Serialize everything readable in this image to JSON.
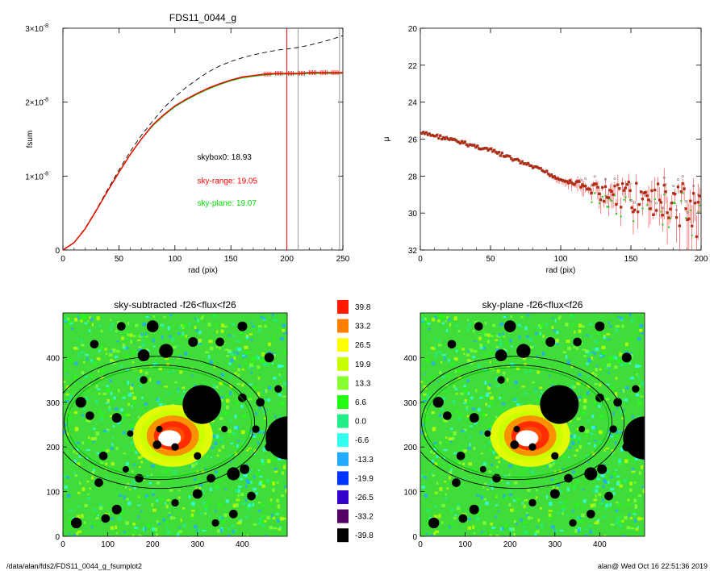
{
  "footer": {
    "path": "/data/alan/fds2/FDS11_0044_g_fsumplot2",
    "user_time": "alan@  Wed Oct 16 22:51:36 2019"
  },
  "colors": {
    "black": "#000000",
    "red": "#ff0000",
    "green": "#00e000",
    "gray": "#999999",
    "sky_field": "#3fdc3a"
  },
  "chart_data": [
    {
      "id": "growth",
      "type": "line",
      "title": "FDS11_0044_g",
      "xlabel": "rad (pix)",
      "ylabel": "fsum",
      "xlim": [
        0,
        250
      ],
      "ylim": [
        0,
        3e-08
      ],
      "xticks": [
        "0",
        "50",
        "100",
        "150",
        "200",
        "250"
      ],
      "yticks": [
        {
          "value": 0,
          "mant": "0",
          "exp": ""
        },
        {
          "value": 1e-08,
          "mant": "1×10",
          "exp": "-8"
        },
        {
          "value": 2e-08,
          "mant": "2×10",
          "exp": "-8"
        },
        {
          "value": 3e-08,
          "mant": "3×10",
          "exp": "-8"
        }
      ],
      "vlines": [
        {
          "x": 200,
          "color": "#ff0000"
        },
        {
          "x": 210,
          "color": "#999999"
        },
        {
          "x": 247,
          "color": "#999999"
        }
      ],
      "x": [
        0,
        10,
        20,
        30,
        40,
        50,
        60,
        70,
        80,
        90,
        100,
        110,
        120,
        130,
        140,
        150,
        160,
        170,
        180,
        190,
        200,
        210,
        220,
        230,
        240,
        250
      ],
      "series": [
        {
          "color": "#000000",
          "dash": true,
          "values": [
            0,
            1e-09,
            3e-09,
            5.5e-09,
            8.2e-09,
            1.08e-08,
            1.33e-08,
            1.55e-08,
            1.74e-08,
            1.92e-08,
            2.07e-08,
            2.2e-08,
            2.31e-08,
            2.41e-08,
            2.49e-08,
            2.55e-08,
            2.6e-08,
            2.64e-08,
            2.67e-08,
            2.7e-08,
            2.72e-08,
            2.74e-08,
            2.77e-08,
            2.81e-08,
            2.85e-08,
            2.9e-08
          ]
        },
        {
          "color": "#00c000",
          "dash": false,
          "values": [
            0,
            1e-09,
            2.9e-09,
            5.4e-09,
            8e-09,
            1.05e-08,
            1.29e-08,
            1.5e-08,
            1.68e-08,
            1.82e-08,
            1.94e-08,
            2.03e-08,
            2.11e-08,
            2.18e-08,
            2.24e-08,
            2.29e-08,
            2.33e-08,
            2.35e-08,
            2.37e-08,
            2.38e-08,
            2.38e-08,
            2.38e-08,
            2.39e-08,
            2.39e-08,
            2.39e-08,
            2.39e-08
          ]
        },
        {
          "color": "#ff0000",
          "dash": false,
          "values": [
            0,
            1e-09,
            2.9e-09,
            5.4e-09,
            8e-09,
            1.05e-08,
            1.29e-08,
            1.5e-08,
            1.69e-08,
            1.83e-08,
            1.95e-08,
            2.04e-08,
            2.12e-08,
            2.19e-08,
            2.25e-08,
            2.3e-08,
            2.34e-08,
            2.36e-08,
            2.38e-08,
            2.39e-08,
            2.39e-08,
            2.39e-08,
            2.4e-08,
            2.4e-08,
            2.4e-08,
            2.4e-08
          ]
        }
      ],
      "annotations": [
        {
          "text": "skybox0: 18.93",
          "color": "#000000",
          "x": 120,
          "y": 1.22e-08
        },
        {
          "text": "sky-range: 19.05",
          "color": "#ff0000",
          "x": 120,
          "y": 9e-09
        },
        {
          "text": "sky-plane: 19.07",
          "color": "#00e000",
          "x": 120,
          "y": 6e-09
        }
      ]
    },
    {
      "id": "profile",
      "type": "scatter",
      "title": "",
      "xlabel": "rad (pix)",
      "ylabel": "μ",
      "xlim": [
        0,
        200
      ],
      "ylim": [
        32,
        20
      ],
      "xticks": [
        "0",
        "50",
        "100",
        "150",
        "200"
      ],
      "yticks": [
        "20",
        "22",
        "24",
        "26",
        "28",
        "30",
        "32"
      ],
      "x": [
        2,
        10,
        20,
        30,
        40,
        50,
        60,
        70,
        80,
        90,
        100,
        110,
        120,
        130,
        140,
        150,
        160,
        170,
        180,
        190,
        198
      ],
      "values": [
        25.7,
        25.8,
        26.0,
        26.2,
        26.4,
        26.6,
        26.9,
        27.2,
        27.5,
        27.8,
        28.2,
        28.4,
        28.7,
        28.9,
        29.0,
        29.1,
        29.2,
        29.4,
        29.6,
        29.8,
        30.0
      ]
    },
    {
      "id": "map1",
      "type": "heatmap",
      "title": "sky-subtracted -f26<flux<f26",
      "xlim": [
        0,
        500
      ],
      "ylim": [
        0,
        500
      ],
      "xticks": [
        "0",
        "100",
        "200",
        "300",
        "400"
      ],
      "yticks": [
        "0",
        "100",
        "200",
        "300",
        "400"
      ]
    },
    {
      "id": "map2",
      "type": "heatmap",
      "title": "sky-plane -f26<flux<f26",
      "xlim": [
        0,
        500
      ],
      "ylim": [
        0,
        500
      ],
      "xticks": [
        "0",
        "100",
        "200",
        "300",
        "400"
      ],
      "yticks": [
        "0",
        "100",
        "200",
        "300",
        "400"
      ]
    },
    {
      "id": "colorbar",
      "type": "table",
      "levels": [
        {
          "label": "39.8",
          "color": "#ff1a00"
        },
        {
          "label": "33.2",
          "color": "#ff7f00"
        },
        {
          "label": "26.5",
          "color": "#ffff00"
        },
        {
          "label": "19.9",
          "color": "#c8ff00"
        },
        {
          "label": "13.3",
          "color": "#88ff33"
        },
        {
          "label": "6.6",
          "color": "#22ff11"
        },
        {
          "label": "0.0",
          "color": "#22ee88"
        },
        {
          "label": "-6.6",
          "color": "#33ffee"
        },
        {
          "label": "-13.3",
          "color": "#22aaff"
        },
        {
          "label": "-19.9",
          "color": "#0033ff"
        },
        {
          "label": "-26.5",
          "color": "#3300cc"
        },
        {
          "label": "-33.2",
          "color": "#550066"
        },
        {
          "label": "-39.8",
          "color": "#000000"
        }
      ]
    }
  ]
}
